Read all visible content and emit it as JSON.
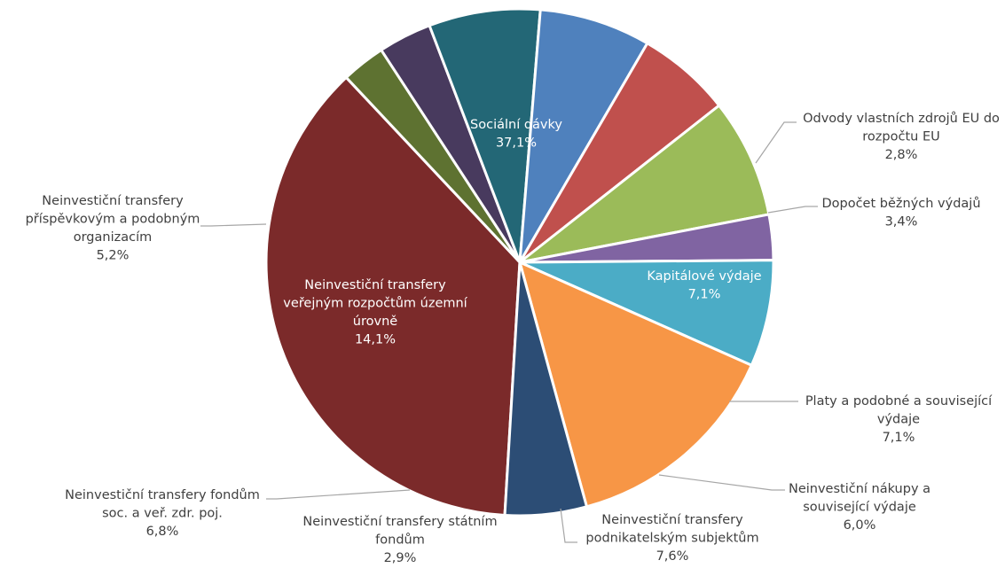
{
  "chart_data": {
    "type": "pie",
    "title": "",
    "slices": [
      {
        "label": [
          "Sociální dávky"
        ],
        "value_label": "37,1%",
        "value": 37.1,
        "color": "#7b2a2a"
      },
      {
        "label": [
          "Odvody vlastních zdrojů EU do",
          "rozpočtu EU"
        ],
        "value_label": "2,8%",
        "value": 2.8,
        "color": "#5e7231"
      },
      {
        "label": [
          "Dopočet běžných výdajů"
        ],
        "value_label": "3,4%",
        "value": 3.4,
        "color": "#483a5e"
      },
      {
        "label": [
          "Kapitálové výdaje"
        ],
        "value_label": "7,1%",
        "value": 7.1,
        "color": "#236776"
      },
      {
        "label": [
          "Platy a podobné a související",
          "výdaje"
        ],
        "value_label": "7,1%",
        "value": 7.1,
        "color": "#4f81bd"
      },
      {
        "label": [
          "Neinvestiční nákupy a",
          "související výdaje"
        ],
        "value_label": "6,0%",
        "value": 6.0,
        "color": "#c0504d"
      },
      {
        "label": [
          "Neinvestiční transfery",
          "podnikatelským subjektům"
        ],
        "value_label": "7,6%",
        "value": 7.6,
        "color": "#9bbb59"
      },
      {
        "label": [
          "Neinvestiční transfery státním",
          "fondům"
        ],
        "value_label": "2,9%",
        "value": 2.9,
        "color": "#8064a2"
      },
      {
        "label": [
          "Neinvestiční transfery fondům",
          "soc. a veř. zdr. poj."
        ],
        "value_label": "6,8%",
        "value": 6.8,
        "color": "#4bacc6"
      },
      {
        "label": [
          "Neinvestiční transfery",
          "veřejným rozpočtům územní",
          "úrovně"
        ],
        "value_label": "14,1%",
        "value": 14.1,
        "color": "#f79646"
      },
      {
        "label": [
          "Neinvestiční transfery",
          "příspěvkovým a podobným",
          "organizacím"
        ],
        "value_label": "5,2%",
        "value": 5.2,
        "color": "#2c4d75"
      }
    ]
  }
}
